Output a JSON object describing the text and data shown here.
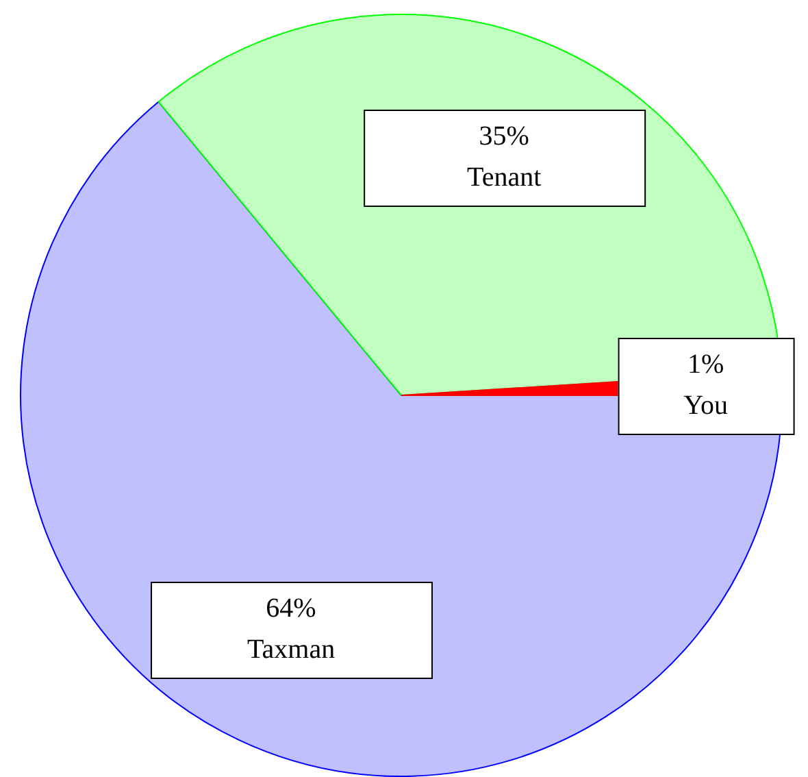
{
  "chart_data": {
    "type": "pie",
    "categories": [
      "Taxman",
      "Tenant",
      "You"
    ],
    "values": [
      64,
      35,
      1
    ],
    "value_labels": [
      "64%",
      "35%",
      "1%"
    ],
    "colors": [
      "#c0c0ff",
      "#c0ffc0",
      "#ff0000"
    ],
    "legend": false
  }
}
